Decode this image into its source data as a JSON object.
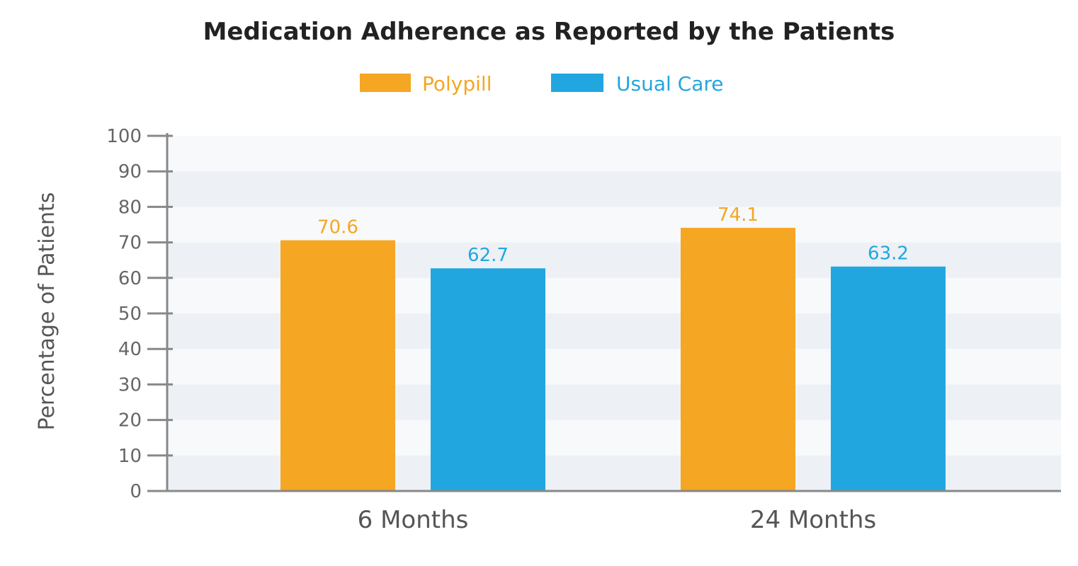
{
  "chart_data": {
    "type": "bar",
    "title": "Medication Adherence as Reported by the Patients",
    "ylabel": "Percentage of Patients",
    "xlabel": "",
    "categories": [
      "6 Months",
      "24 Months"
    ],
    "series": [
      {
        "name": "Polypill",
        "values": [
          70.6,
          74.1
        ],
        "color": "#F5A623"
      },
      {
        "name": "Usual Care",
        "values": [
          62.7,
          63.2
        ],
        "color": "#22A6E0"
      }
    ],
    "value_labels": [
      [
        "70.6",
        "74.1"
      ],
      [
        "62.7",
        "63.2"
      ]
    ],
    "ylim": [
      0,
      100
    ],
    "yticks": [
      0,
      10,
      20,
      30,
      40,
      50,
      60,
      70,
      80,
      90,
      100
    ],
    "ytick_labels": [
      "0",
      "10",
      "20",
      "30",
      "40",
      "50",
      "60",
      "70",
      "80",
      "90",
      "100"
    ],
    "grid": "alternating horizontal bands",
    "legend_position": "top-center",
    "colors": {
      "band_light": "#F7F9FB",
      "band_dark": "#EDF1F5",
      "axis": "#888888"
    }
  }
}
